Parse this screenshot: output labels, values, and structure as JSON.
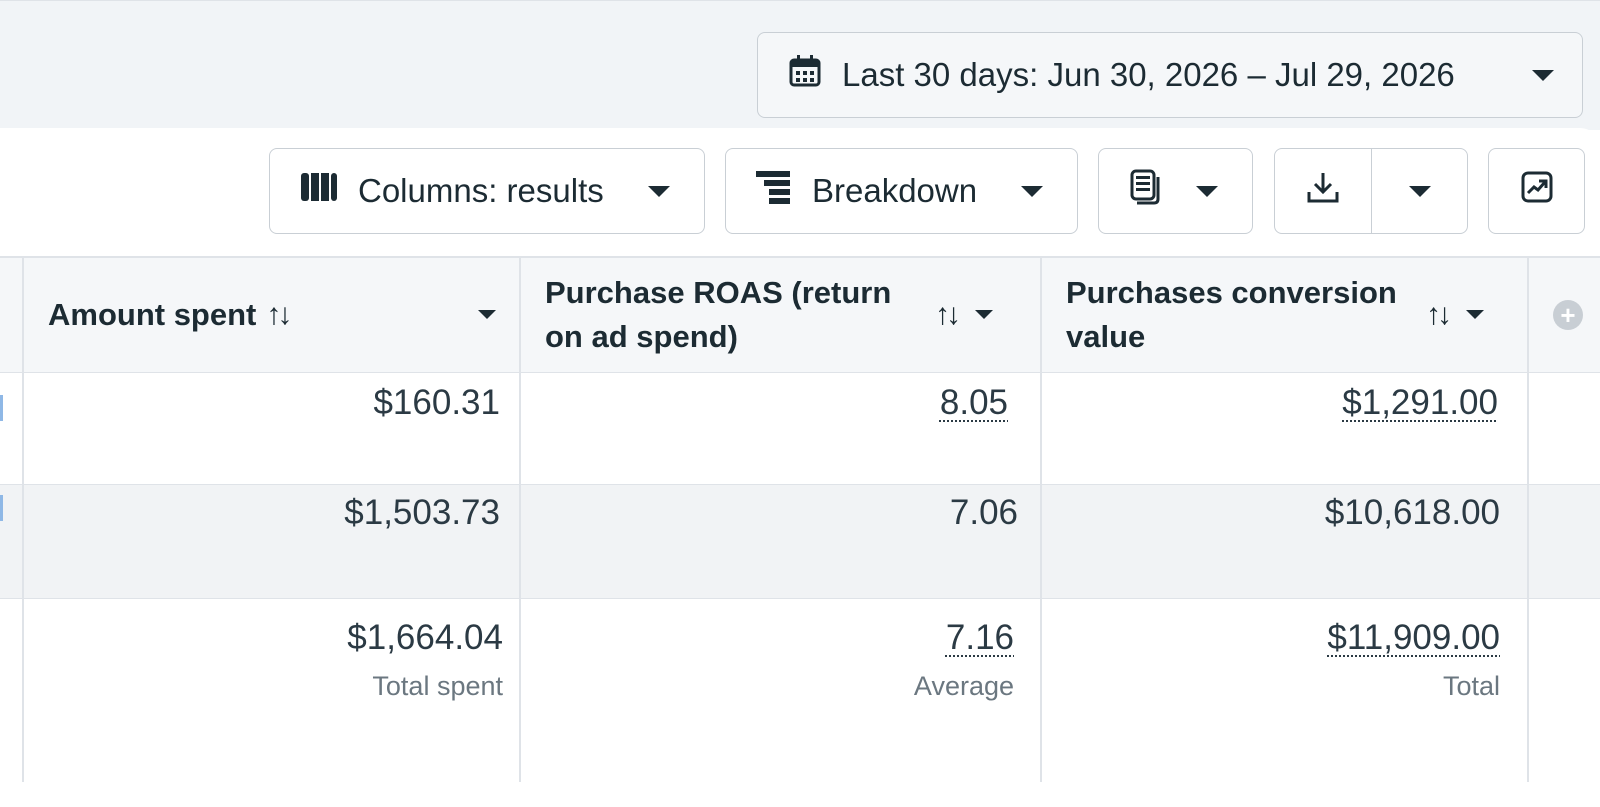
{
  "date_range": {
    "label": "Last 30 days: Jun 30, 2026 – Jul 29, 2026",
    "icon": "calendar-icon"
  },
  "toolbar": {
    "columns_label": "Columns: results",
    "columns_icon": "columns-icon",
    "breakdown_label": "Breakdown",
    "breakdown_icon": "breakdown-icon",
    "reports_icon": "reports-icon",
    "export_icon": "download-icon",
    "expand_icon": "expand-chart-icon"
  },
  "table": {
    "columns": [
      {
        "label": "Amount spent"
      },
      {
        "label": "Purchase ROAS (return on ad spend)"
      },
      {
        "label": "Purchases conversion value"
      }
    ],
    "sort_glyph": "↑↓",
    "add_column_glyph": "+",
    "rows": [
      [
        "$160.31",
        "8.05",
        "$1,291.00"
      ],
      [
        "$1,503.73",
        "7.06",
        "$10,618.00"
      ]
    ],
    "totals": {
      "values": [
        "$1,664.04",
        "7.16",
        "$11,909.00"
      ],
      "labels": [
        "Total spent",
        "Average",
        "Total"
      ]
    }
  }
}
